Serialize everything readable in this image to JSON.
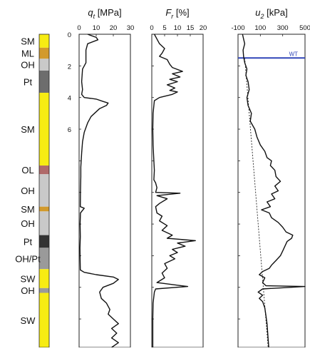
{
  "colors": {
    "sand": "#f7ec13",
    "silt": "#d29a2c",
    "organic": "#c9c9c9",
    "peat": "#6d6d6d",
    "peat_dark": "#333333",
    "organic_peat": "#9a9a9a",
    "clay_organic": "#b06a6a",
    "water_table": "#3046b8",
    "trace": "#111111"
  },
  "chart_data": [
    {
      "type": "bar",
      "title": "",
      "soil_layers": [
        {
          "label": "SM",
          "top": 0.0,
          "bottom": 0.85,
          "color": "sand",
          "labeled": true
        },
        {
          "label": "ML",
          "top": 0.85,
          "bottom": 1.55,
          "color": "silt",
          "labeled": true
        },
        {
          "label": "OH",
          "top": 1.55,
          "bottom": 2.3,
          "color": "organic",
          "labeled": true
        },
        {
          "label": "Pt",
          "top": 2.3,
          "bottom": 3.7,
          "color": "peat",
          "labeled": true
        },
        {
          "label": "SM",
          "top": 3.7,
          "bottom": 8.3,
          "color": "sand",
          "labeled": true
        },
        {
          "label": "OL",
          "top": 8.3,
          "bottom": 8.85,
          "color": "clay_organic",
          "labeled": true
        },
        {
          "label": "OH",
          "top": 8.85,
          "bottom": 10.9,
          "color": "organic",
          "labeled": true
        },
        {
          "label": "SM",
          "top": 10.9,
          "bottom": 11.2,
          "color": "silt",
          "labeled": true
        },
        {
          "label": "OH",
          "top": 11.2,
          "bottom": 12.7,
          "color": "organic",
          "labeled": true
        },
        {
          "label": "Pt",
          "top": 12.7,
          "bottom": 13.5,
          "color": "peat_dark",
          "labeled": true
        },
        {
          "label": "OH/Pt",
          "top": 13.5,
          "bottom": 14.85,
          "color": "organic_peat",
          "labeled": true
        },
        {
          "label": "SW",
          "top": 14.85,
          "bottom": 16.05,
          "color": "sand",
          "labeled": true
        },
        {
          "label": "OH",
          "top": 16.05,
          "bottom": 16.35,
          "color": "organic_peat",
          "labeled": true
        },
        {
          "label": "SW",
          "top": 16.35,
          "bottom": 19.8,
          "color": "sand",
          "labeled": true
        }
      ]
    },
    {
      "type": "line",
      "title_symbol": "q",
      "title_sub": "t",
      "title_unit": " [MPa]",
      "xlim": [
        0,
        30
      ],
      "xticks": [
        "0",
        "10",
        "20",
        "30"
      ],
      "ylim": [
        0,
        19.8
      ],
      "yticks": [
        "0",
        "2",
        "4",
        "6"
      ],
      "yticks_at": [
        0,
        2,
        4,
        6
      ],
      "minor_tick_depths": [
        8,
        10,
        12,
        14,
        16,
        18
      ],
      "points": [
        [
          5,
          0
        ],
        [
          10,
          0.2
        ],
        [
          11,
          0.35
        ],
        [
          5,
          0.6
        ],
        [
          4,
          1
        ],
        [
          4,
          1.8
        ],
        [
          2,
          2.2
        ],
        [
          1.5,
          3
        ],
        [
          2,
          3.5
        ],
        [
          1.5,
          3.8
        ],
        [
          3,
          4.0
        ],
        [
          10,
          4.1
        ],
        [
          14,
          4.25
        ],
        [
          17,
          4.35
        ],
        [
          16,
          4.5
        ],
        [
          12,
          4.7
        ],
        [
          7,
          5.2
        ],
        [
          5,
          5.6
        ],
        [
          3,
          6.2
        ],
        [
          2,
          6.8
        ],
        [
          1.5,
          7.5
        ],
        [
          1,
          8.4
        ],
        [
          1,
          9.0
        ],
        [
          0.8,
          10
        ],
        [
          0.7,
          10.9
        ],
        [
          3,
          11.0
        ],
        [
          0.8,
          11.3
        ],
        [
          0.6,
          12
        ],
        [
          0.7,
          12.8
        ],
        [
          0.5,
          13.5
        ],
        [
          0.6,
          14.2
        ],
        [
          0.7,
          14.9
        ],
        [
          3,
          15.05
        ],
        [
          10,
          15.2
        ],
        [
          20,
          15.35
        ],
        [
          23,
          15.5
        ],
        [
          20,
          15.75
        ],
        [
          14,
          16.0
        ],
        [
          12,
          16.3
        ],
        [
          13,
          16.7
        ],
        [
          16,
          17.0
        ],
        [
          18,
          17.4
        ],
        [
          17,
          17.7
        ],
        [
          20,
          18.0
        ],
        [
          23,
          18.3
        ],
        [
          19,
          18.6
        ],
        [
          22,
          18.9
        ],
        [
          19,
          19.2
        ],
        [
          23,
          19.5
        ],
        [
          19,
          19.8
        ]
      ]
    },
    {
      "type": "line",
      "title_symbol": "F",
      "title_sub": "r",
      "title_unit": " [%]",
      "xlim": [
        0,
        20
      ],
      "xticks": [
        "0",
        "5",
        "10",
        "15",
        "20"
      ],
      "ylim": [
        0,
        19.8
      ],
      "points": [
        [
          1,
          0
        ],
        [
          2,
          0.3
        ],
        [
          3,
          0.6
        ],
        [
          5,
          0.9
        ],
        [
          4,
          1.2
        ],
        [
          3,
          1.4
        ],
        [
          6,
          1.6
        ],
        [
          7,
          1.9
        ],
        [
          8,
          2.1
        ],
        [
          12,
          2.35
        ],
        [
          8,
          2.5
        ],
        [
          11,
          2.7
        ],
        [
          7,
          2.85
        ],
        [
          10,
          3.0
        ],
        [
          6,
          3.2
        ],
        [
          9,
          3.4
        ],
        [
          7,
          3.55
        ],
        [
          10,
          3.65
        ],
        [
          8,
          3.8
        ],
        [
          3,
          4.0
        ],
        [
          1,
          4.2
        ],
        [
          0.5,
          5
        ],
        [
          0.4,
          6
        ],
        [
          0.5,
          7
        ],
        [
          0.8,
          8
        ],
        [
          1,
          8.6
        ],
        [
          0.8,
          9.2
        ],
        [
          1.5,
          9.4
        ],
        [
          2,
          9.7
        ],
        [
          1.5,
          10
        ],
        [
          11,
          10.05
        ],
        [
          2,
          10.2
        ],
        [
          6,
          10.4
        ],
        [
          3,
          10.7
        ],
        [
          1.5,
          10.9
        ],
        [
          2,
          11.3
        ],
        [
          4,
          11.5
        ],
        [
          3,
          11.8
        ],
        [
          6,
          12.1
        ],
        [
          4,
          12.4
        ],
        [
          8,
          12.7
        ],
        [
          6,
          12.9
        ],
        [
          17,
          13.05
        ],
        [
          10,
          13.2
        ],
        [
          13,
          13.4
        ],
        [
          8,
          13.6
        ],
        [
          10,
          13.8
        ],
        [
          7,
          14.0
        ],
        [
          9,
          14.2
        ],
        [
          5,
          14.5
        ],
        [
          6,
          14.8
        ],
        [
          4,
          15.1
        ],
        [
          5,
          15.4
        ],
        [
          2,
          15.7
        ],
        [
          14,
          15.95
        ],
        [
          1.5,
          16.1
        ],
        [
          1,
          16.3
        ],
        [
          0.5,
          17
        ],
        [
          0.4,
          18
        ],
        [
          0.4,
          19.8
        ]
      ]
    },
    {
      "type": "line",
      "title_symbol": "u",
      "title_sub": "2",
      "title_unit": " [kPa]",
      "xlim": [
        -100,
        500
      ],
      "xticks": [
        "-100",
        "100",
        "300",
        "500"
      ],
      "ylim": [
        0,
        19.8
      ],
      "water_table_depth": 1.5,
      "water_table_label": "WT",
      "hydrostatic_line": [
        [
          -40,
          1.5
        ],
        [
          170,
          19.8
        ]
      ],
      "points": [
        [
          -60,
          0
        ],
        [
          -50,
          0.3
        ],
        [
          -40,
          0.6
        ],
        [
          -55,
          1.0
        ],
        [
          -50,
          1.4
        ],
        [
          -40,
          1.8
        ],
        [
          -20,
          2.2
        ],
        [
          -30,
          2.6
        ],
        [
          -10,
          3.0
        ],
        [
          0,
          3.5
        ],
        [
          -20,
          4.0
        ],
        [
          -10,
          4.5
        ],
        [
          20,
          5
        ],
        [
          10,
          5.5
        ],
        [
          50,
          6.0
        ],
        [
          70,
          6.5
        ],
        [
          100,
          7.0
        ],
        [
          140,
          7.4
        ],
        [
          160,
          7.8
        ],
        [
          200,
          8.0
        ],
        [
          190,
          8.3
        ],
        [
          230,
          8.6
        ],
        [
          240,
          9.0
        ],
        [
          280,
          9.3
        ],
        [
          230,
          9.6
        ],
        [
          260,
          9.9
        ],
        [
          200,
          10.1
        ],
        [
          230,
          10.4
        ],
        [
          160,
          10.6
        ],
        [
          190,
          10.9
        ],
        [
          110,
          11.1
        ],
        [
          180,
          11.3
        ],
        [
          200,
          11.6
        ],
        [
          260,
          11.9
        ],
        [
          300,
          12.2
        ],
        [
          330,
          12.5
        ],
        [
          390,
          12.7
        ],
        [
          380,
          12.9
        ],
        [
          340,
          13.1
        ],
        [
          320,
          13.4
        ],
        [
          300,
          13.7
        ],
        [
          280,
          14.0
        ],
        [
          240,
          14.3
        ],
        [
          200,
          14.6
        ],
        [
          180,
          14.8
        ],
        [
          120,
          15.0
        ],
        [
          90,
          15.2
        ],
        [
          140,
          15.4
        ],
        [
          120,
          15.7
        ],
        [
          150,
          15.9
        ],
        [
          500,
          15.95
        ],
        [
          120,
          16.1
        ],
        [
          80,
          16.3
        ],
        [
          120,
          16.5
        ],
        [
          90,
          16.7
        ],
        [
          120,
          16.9
        ],
        [
          140,
          17.3
        ],
        [
          150,
          17.8
        ],
        [
          160,
          18.3
        ],
        [
          165,
          18.8
        ],
        [
          170,
          19.3
        ],
        [
          175,
          19.8
        ]
      ]
    }
  ]
}
